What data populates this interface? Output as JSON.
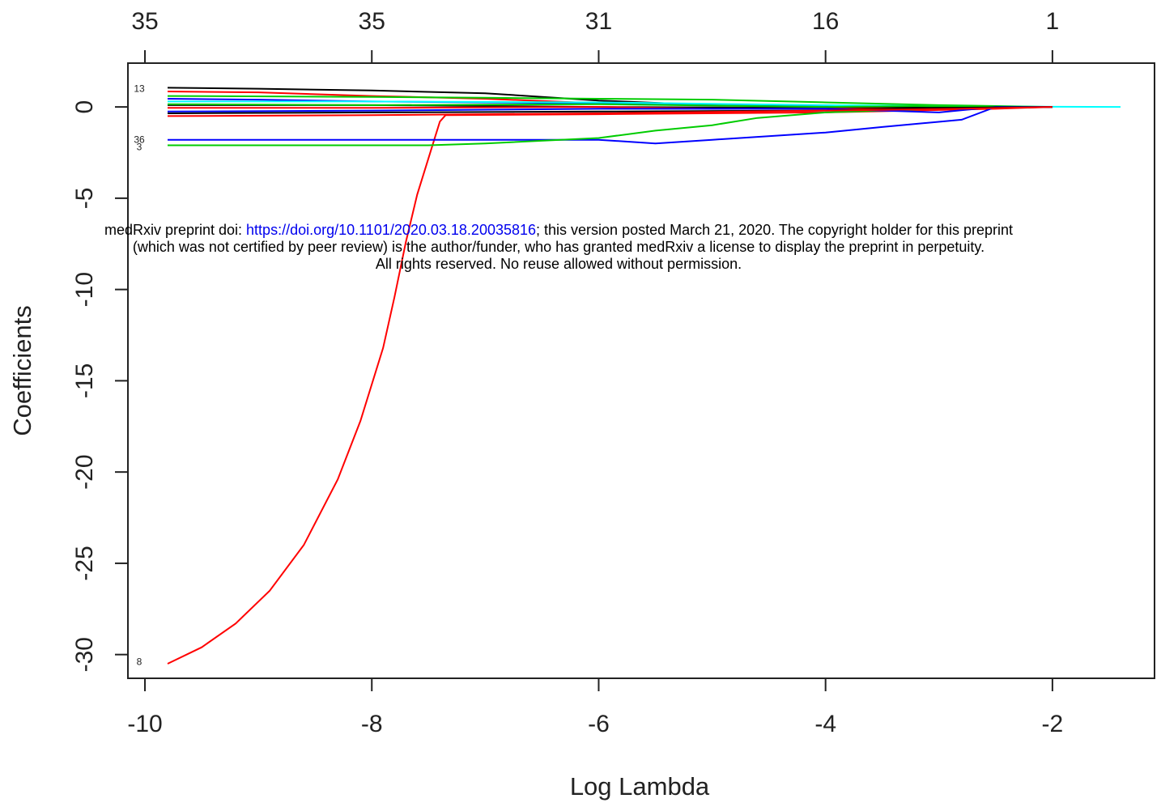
{
  "notice": {
    "line1_prefix": "medRxiv preprint doi: ",
    "doi_link": "https://doi.org/10.1101/2020.03.18.20035816",
    "line1_suffix": "; this version posted March 21, 2020. The copyright holder for this preprint",
    "line2": "(which was not certified by peer review) is the author/funder, who has granted medRxiv a license to display the preprint in perpetuity.",
    "line3": "All rights reserved. No reuse allowed without permission."
  },
  "chart_data": {
    "type": "line",
    "title": "",
    "xlabel": "Log Lambda",
    "ylabel": "Coefficients",
    "xlim": [
      -10.15,
      -1.1
    ],
    "ylim": [
      -31.3,
      2.4
    ],
    "x_ticks": [
      -10,
      -8,
      -6,
      -4,
      -2
    ],
    "x_tick_labels": [
      "-10",
      "-8",
      "-6",
      "-4",
      "-2"
    ],
    "y_ticks": [
      0,
      -5,
      -10,
      -15,
      -20,
      -25,
      -30
    ],
    "y_tick_labels": [
      "0",
      "-5",
      "-10",
      "-15",
      "-20",
      "-25",
      "-30"
    ],
    "top_axis_ticks": [
      -10,
      -8,
      -6,
      -4,
      -2
    ],
    "top_axis_labels": [
      "35",
      "35",
      "31",
      "16",
      "1"
    ],
    "grid": false,
    "legend": "none",
    "series_labels": [
      {
        "text": "8",
        "y": -30.4
      },
      {
        "text": "36",
        "y": -1.8
      },
      {
        "text": "3",
        "y": -2.2
      },
      {
        "text": "13",
        "y": 1.0
      }
    ],
    "series": [
      {
        "color": "#ff0000",
        "points": [
          [
            -9.8,
            -30.5
          ],
          [
            -9.5,
            -29.6
          ],
          [
            -9.2,
            -28.3
          ],
          [
            -8.9,
            -26.5
          ],
          [
            -8.6,
            -24.0
          ],
          [
            -8.3,
            -20.4
          ],
          [
            -8.1,
            -17.2
          ],
          [
            -7.9,
            -13.2
          ],
          [
            -7.8,
            -10.4
          ],
          [
            -7.7,
            -7.4
          ],
          [
            -7.6,
            -4.8
          ],
          [
            -7.5,
            -2.8
          ],
          [
            -7.45,
            -1.8
          ],
          [
            -7.4,
            -0.8
          ],
          [
            -7.35,
            -0.45
          ],
          [
            -6.0,
            -0.4
          ],
          [
            -4.0,
            -0.3
          ],
          [
            -2.5,
            -0.1
          ],
          [
            -2.0,
            0
          ]
        ]
      },
      {
        "color": "#0000ff",
        "points": [
          [
            -9.8,
            -1.8
          ],
          [
            -7.5,
            -1.8
          ],
          [
            -6.0,
            -1.8
          ],
          [
            -5.5,
            -2.0
          ],
          [
            -5.0,
            -1.8
          ],
          [
            -4.0,
            -1.4
          ],
          [
            -3.5,
            -1.1
          ],
          [
            -2.8,
            -0.7
          ],
          [
            -2.5,
            0
          ],
          [
            -2.0,
            0
          ]
        ]
      },
      {
        "color": "#00cc00",
        "points": [
          [
            -9.8,
            -2.1
          ],
          [
            -7.5,
            -2.1
          ],
          [
            -7.0,
            -2.0
          ],
          [
            -6.0,
            -1.7
          ],
          [
            -5.5,
            -1.3
          ],
          [
            -5.0,
            -1.0
          ],
          [
            -4.6,
            -0.6
          ],
          [
            -4.0,
            -0.3
          ],
          [
            -3.0,
            -0.1
          ],
          [
            -2.0,
            0
          ]
        ]
      },
      {
        "color": "#000000",
        "points": [
          [
            -9.8,
            1.05
          ],
          [
            -9.0,
            1.0
          ],
          [
            -8.0,
            0.9
          ],
          [
            -7.0,
            0.75
          ],
          [
            -6.0,
            0.35
          ],
          [
            -5.0,
            0.1
          ],
          [
            -4.0,
            0.05
          ],
          [
            -2.0,
            0
          ]
        ]
      },
      {
        "color": "#ff0000",
        "points": [
          [
            -9.8,
            0.85
          ],
          [
            -9.0,
            0.8
          ],
          [
            -8.0,
            0.6
          ],
          [
            -7.0,
            0.45
          ],
          [
            -6.0,
            0.2
          ],
          [
            -4.0,
            0.05
          ],
          [
            -2.0,
            0
          ]
        ]
      },
      {
        "color": "#00cc00",
        "points": [
          [
            -9.8,
            0.6
          ],
          [
            -8.0,
            0.55
          ],
          [
            -7.0,
            0.5
          ],
          [
            -6.0,
            0.45
          ],
          [
            -5.0,
            0.4
          ],
          [
            -4.0,
            0.25
          ],
          [
            -3.0,
            0.1
          ],
          [
            -2.0,
            0
          ]
        ]
      },
      {
        "color": "#0000ff",
        "points": [
          [
            -9.8,
            0.45
          ],
          [
            -9.0,
            0.4
          ],
          [
            -8.0,
            0.3
          ],
          [
            -7.0,
            0.25
          ],
          [
            -6.0,
            0.2
          ],
          [
            -4.0,
            0.05
          ],
          [
            -2.0,
            0
          ]
        ]
      },
      {
        "color": "#00ffff",
        "points": [
          [
            -9.8,
            0.3
          ],
          [
            -8.0,
            0.3
          ],
          [
            -6.0,
            0.25
          ],
          [
            -4.0,
            0.1
          ],
          [
            -2.5,
            0.02
          ],
          [
            -1.4,
            0
          ]
        ]
      },
      {
        "color": "#000000",
        "points": [
          [
            -9.8,
            0.1
          ],
          [
            -8.0,
            0.1
          ],
          [
            -6.0,
            0.0
          ],
          [
            -4.0,
            -0.05
          ],
          [
            -2.0,
            0
          ]
        ]
      },
      {
        "color": "#00cc00",
        "points": [
          [
            -9.8,
            0.15
          ],
          [
            -8.0,
            0.1
          ],
          [
            -6.0,
            0.15
          ],
          [
            -4.0,
            0.0
          ],
          [
            -3.2,
            0.05
          ],
          [
            -2.0,
            0
          ]
        ]
      },
      {
        "color": "#ff0000",
        "points": [
          [
            -9.8,
            -0.05
          ],
          [
            -8.0,
            -0.05
          ],
          [
            -6.0,
            0.0
          ],
          [
            -5.0,
            -0.1
          ],
          [
            -3.0,
            -0.1
          ],
          [
            -2.0,
            0
          ]
        ]
      },
      {
        "color": "#0000ff",
        "points": [
          [
            -9.8,
            -0.25
          ],
          [
            -8.0,
            -0.2
          ],
          [
            -6.0,
            -0.1
          ],
          [
            -4.0,
            -0.1
          ],
          [
            -3.0,
            -0.3
          ],
          [
            -2.5,
            0
          ],
          [
            -2.0,
            0
          ]
        ]
      },
      {
        "color": "#000000",
        "points": [
          [
            -9.8,
            -0.35
          ],
          [
            -8.0,
            -0.3
          ],
          [
            -6.0,
            -0.25
          ],
          [
            -4.0,
            -0.2
          ],
          [
            -3.0,
            -0.05
          ],
          [
            -2.0,
            0
          ]
        ]
      },
      {
        "color": "#ff0000",
        "points": [
          [
            -9.8,
            -0.5
          ],
          [
            -8.0,
            -0.45
          ],
          [
            -7.0,
            -0.4
          ],
          [
            -6.0,
            -0.35
          ],
          [
            -4.0,
            -0.2
          ],
          [
            -2.8,
            -0.1
          ],
          [
            -2.0,
            0
          ]
        ]
      }
    ]
  }
}
